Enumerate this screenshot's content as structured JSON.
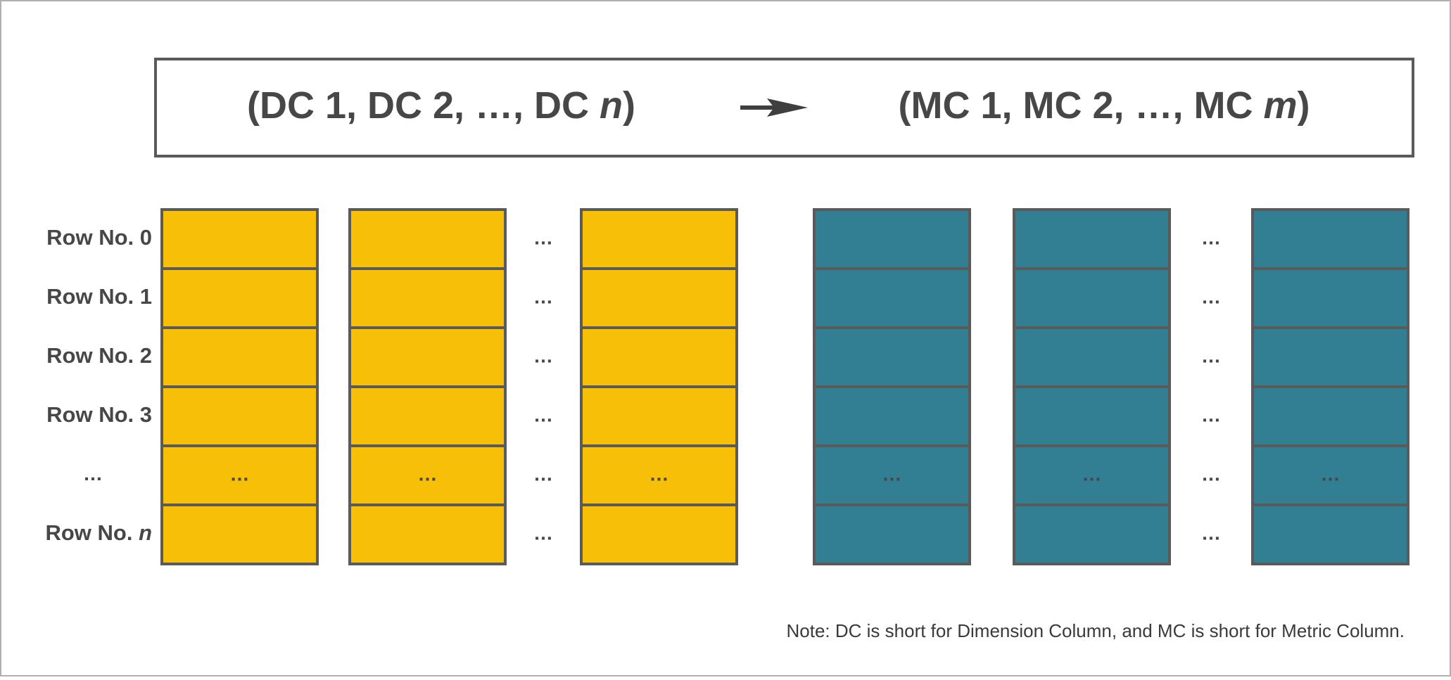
{
  "header": {
    "source": [
      "(DC 1, DC 2, …, DC ",
      "n",
      ")"
    ],
    "target": [
      "(MC 1, MC 2, …, MC ",
      "m",
      ")"
    ]
  },
  "rows": [
    {
      "label": [
        "Row No. 0"
      ],
      "gaps": [
        "…",
        "…"
      ]
    },
    {
      "label": [
        "Row No. 1"
      ],
      "gaps": [
        "…",
        "…"
      ]
    },
    {
      "label": [
        "Row No. 2"
      ],
      "gaps": [
        "…",
        "…"
      ]
    },
    {
      "label": [
        "Row No. 3"
      ],
      "gaps": [
        "…",
        "…"
      ]
    },
    {
      "label": [
        "…"
      ],
      "gaps": [
        "…",
        "…"
      ],
      "cells": [
        "…",
        "…",
        "…",
        "…",
        "…",
        "…"
      ]
    },
    {
      "label": [
        "Row No. ",
        "n"
      ],
      "gaps": [
        "…",
        "…"
      ]
    }
  ],
  "note": "Note: DC is short for Dimension Column, and MC is short for Metric Column."
}
